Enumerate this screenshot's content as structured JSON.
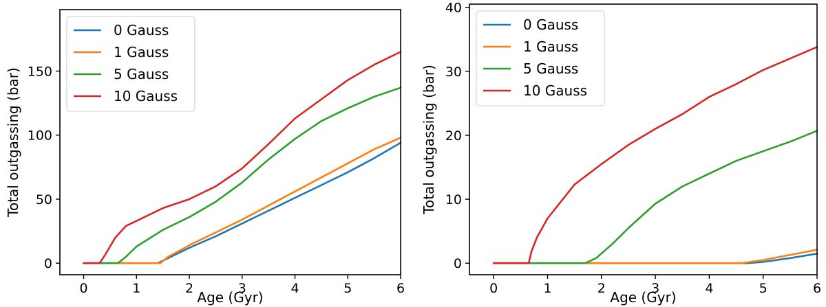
{
  "chart_data": [
    {
      "type": "line",
      "xlabel": "Age (Gyr)",
      "ylabel": "Total outgassing (bar)",
      "xlim": [
        -0.45,
        6
      ],
      "ylim": [
        -9,
        198
      ],
      "xticks": [
        0,
        1,
        2,
        3,
        4,
        5,
        6
      ],
      "yticks": [
        0,
        50,
        100,
        150
      ],
      "legend_position": "top-left",
      "series": [
        {
          "name": "0 Gauss",
          "color": "#1f77b4",
          "points": [
            [
              0,
              0
            ],
            [
              1.4,
              0
            ],
            [
              1.6,
              4
            ],
            [
              2,
              12
            ],
            [
              2.5,
              21
            ],
            [
              3,
              31
            ],
            [
              3.5,
              41
            ],
            [
              4,
              51
            ],
            [
              4.5,
              61
            ],
            [
              5,
              71
            ],
            [
              5.5,
              82
            ],
            [
              6,
              94
            ]
          ]
        },
        {
          "name": "1 Gauss",
          "color": "#ff7f0e",
          "points": [
            [
              0,
              0
            ],
            [
              1.45,
              0
            ],
            [
              1.6,
              5
            ],
            [
              2,
              14
            ],
            [
              2.5,
              24
            ],
            [
              3,
              34
            ],
            [
              3.5,
              45
            ],
            [
              4,
              56
            ],
            [
              4.5,
              67
            ],
            [
              5,
              78
            ],
            [
              5.5,
              89
            ],
            [
              6,
              98
            ]
          ]
        },
        {
          "name": "5 Gauss",
          "color": "#2ca02c",
          "points": [
            [
              0,
              0
            ],
            [
              0.65,
              0
            ],
            [
              0.8,
              5
            ],
            [
              1,
              13
            ],
            [
              1.5,
              26
            ],
            [
              2,
              36
            ],
            [
              2.5,
              48
            ],
            [
              3,
              63
            ],
            [
              3.5,
              81
            ],
            [
              4,
              97
            ],
            [
              4.5,
              111
            ],
            [
              5,
              121
            ],
            [
              5.5,
              130
            ],
            [
              6,
              137
            ]
          ]
        },
        {
          "name": "10 Gauss",
          "color": "#d62728",
          "points": [
            [
              0,
              0
            ],
            [
              0.3,
              0
            ],
            [
              0.4,
              6
            ],
            [
              0.6,
              20
            ],
            [
              0.8,
              29
            ],
            [
              1,
              33
            ],
            [
              1.5,
              43
            ],
            [
              2,
              50
            ],
            [
              2.5,
              60
            ],
            [
              3,
              74
            ],
            [
              3.5,
              93
            ],
            [
              4,
              113
            ],
            [
              4.5,
              128
            ],
            [
              5,
              143
            ],
            [
              5.5,
              155
            ],
            [
              6,
              165
            ]
          ]
        }
      ]
    },
    {
      "type": "line",
      "xlabel": "Age (Gyr)",
      "ylabel": "Total outgassing (bar)",
      "xlim": [
        -0.45,
        6
      ],
      "ylim": [
        -1.8,
        40.5
      ],
      "xticks": [
        0,
        1,
        2,
        3,
        4,
        5,
        6
      ],
      "yticks": [
        0,
        10,
        20,
        30,
        40
      ],
      "legend_position": "top-left",
      "series": [
        {
          "name": "0 Gauss",
          "color": "#1f77b4",
          "points": [
            [
              0,
              0
            ],
            [
              4.7,
              0
            ],
            [
              5,
              0.2
            ],
            [
              5.5,
              0.8
            ],
            [
              6,
              1.5
            ]
          ]
        },
        {
          "name": "1 Gauss",
          "color": "#ff7f0e",
          "points": [
            [
              0,
              0
            ],
            [
              4.6,
              0
            ],
            [
              5,
              0.5
            ],
            [
              5.5,
              1.3
            ],
            [
              6,
              2.1
            ]
          ]
        },
        {
          "name": "5 Gauss",
          "color": "#2ca02c",
          "points": [
            [
              0,
              0
            ],
            [
              1.7,
              0
            ],
            [
              1.9,
              0.8
            ],
            [
              2.2,
              3
            ],
            [
              2.5,
              5.5
            ],
            [
              3,
              9.3
            ],
            [
              3.5,
              12
            ],
            [
              4,
              14
            ],
            [
              4.5,
              16
            ],
            [
              5,
              17.5
            ],
            [
              5.5,
              19
            ],
            [
              6,
              20.7
            ]
          ]
        },
        {
          "name": "10 Gauss",
          "color": "#d62728",
          "points": [
            [
              0,
              0
            ],
            [
              0.65,
              0
            ],
            [
              0.7,
              1.8
            ],
            [
              0.8,
              4
            ],
            [
              1,
              7
            ],
            [
              1.5,
              12.3
            ],
            [
              2,
              15.5
            ],
            [
              2.5,
              18.5
            ],
            [
              3,
              21
            ],
            [
              3.5,
              23.3
            ],
            [
              4,
              26
            ],
            [
              4.5,
              28
            ],
            [
              5,
              30.2
            ],
            [
              5.5,
              32
            ],
            [
              6,
              33.8
            ]
          ]
        }
      ]
    }
  ]
}
